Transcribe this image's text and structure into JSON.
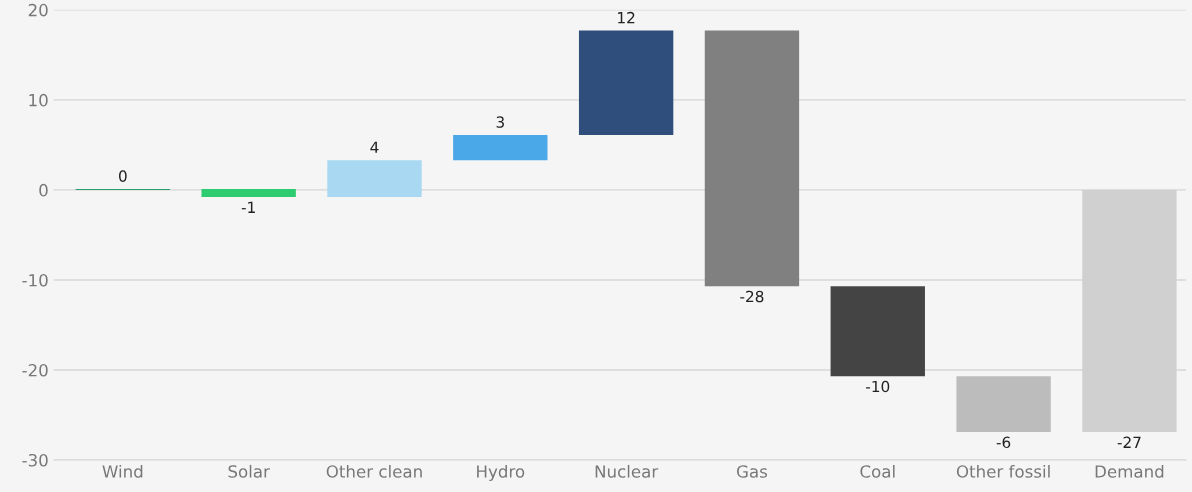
{
  "chart_data": {
    "type": "bar",
    "categories": [
      "Wind",
      "Solar",
      "Other clean",
      "Hydro",
      "Nuclear",
      "Gas",
      "Coal",
      "Other fossil",
      "Demand"
    ],
    "values": [
      0.1,
      -0.9,
      4.1,
      2.8,
      11.6,
      -28.4,
      -10,
      -6.2,
      -26.9
    ],
    "base": [
      0,
      0.1,
      -0.8,
      3.3,
      6.1,
      17.7,
      -10.7,
      -20.7,
      0
    ],
    "value_labels": [
      "0",
      "-1",
      "4",
      "3",
      "12",
      "-28",
      "-10",
      "-6",
      "-27"
    ],
    "colors": [
      "#2a9d6a",
      "#2ecc71",
      "#a8d8f2",
      "#4aa8e8",
      "#2f4e7c",
      "#808080",
      "#444444",
      "#bcbcbc",
      "#d0d0d0"
    ],
    "ylim": [
      -30,
      20
    ],
    "yticks": [
      -30,
      -20,
      -10,
      0,
      10,
      20
    ],
    "grid": "y",
    "legend": false
  }
}
